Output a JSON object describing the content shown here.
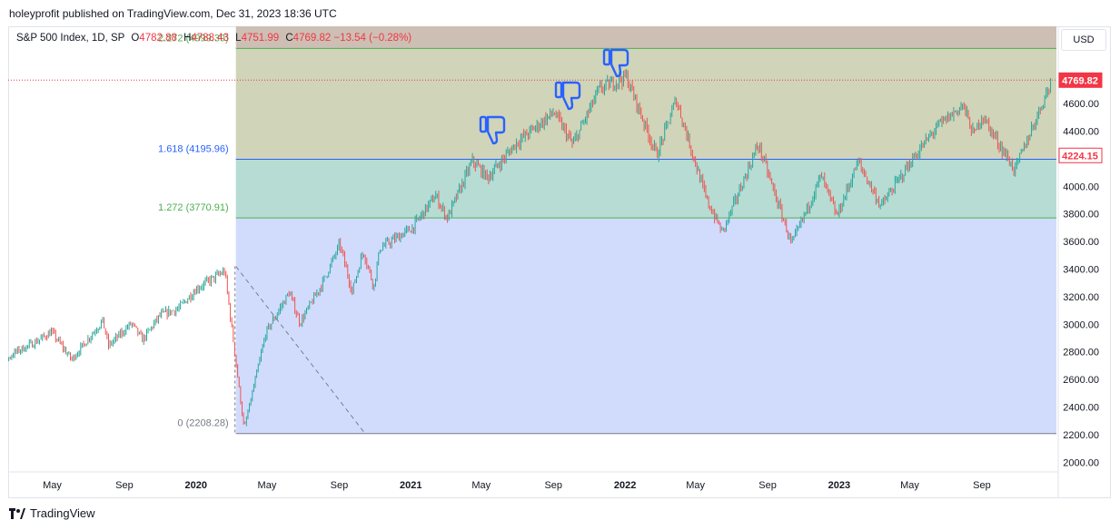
{
  "header": {
    "publisher_line": "holeyprofit published on TradingView.com, Dec 31, 2023 18:36 UTC"
  },
  "legend": {
    "symbol": "S&P 500 Index, 1D, SP",
    "o_label": "O",
    "o_value": "4782.88",
    "h_label": "H",
    "h_value": "4788.43",
    "l_label": "L",
    "l_value": "4751.99",
    "c_label": "C",
    "c_value": "4769.82",
    "change": "−13.54 (−0.28%)"
  },
  "currency_button": "USD",
  "footer": {
    "brand": "TradingView"
  },
  "colors": {
    "up": "#26a69a",
    "down": "#ef5350",
    "fib_line": "#2962ff"
  },
  "chart_data": {
    "type": "candlestick",
    "title": "",
    "x_ticks": [
      "May",
      "Sep",
      "2020",
      "May",
      "Sep",
      "2021",
      "May",
      "Sep",
      "2022",
      "May",
      "Sep",
      "2023",
      "May",
      "Sep"
    ],
    "x_ticks_bold": [
      false,
      false,
      true,
      false,
      false,
      true,
      false,
      false,
      true,
      false,
      false,
      true,
      false,
      false
    ],
    "y_ticks": [
      2000,
      2200,
      2400,
      2600,
      2800,
      3000,
      3200,
      3400,
      3600,
      3800,
      4000,
      4200,
      4400,
      4600,
      4800
    ],
    "ylim": [
      1930,
      5160
    ],
    "last_price": {
      "value": 4769.82,
      "label": "4769.82"
    },
    "second_price": {
      "value": 4224.15,
      "label": "4224.15"
    },
    "fib_levels": [
      {
        "ratio": 0,
        "value": 2208.28,
        "label": "0 (2208.28)",
        "color": "#787b86"
      },
      {
        "ratio": 1.272,
        "value": 3770.91,
        "label": "1.272 (3770.91)",
        "color": "#4caf50"
      },
      {
        "ratio": 1.618,
        "value": 4195.96,
        "label": "1.618 (4195.96)",
        "color": "#2962ff"
      },
      {
        "ratio": 2.272,
        "value": 4999.39,
        "label": "2.272 (4999.39)",
        "color": "#4caf50"
      }
    ],
    "price_path": [
      [
        "2019-01-02",
        2510
      ],
      [
        "2019-02-01",
        2706
      ],
      [
        "2019-03-01",
        2803
      ],
      [
        "2019-04-01",
        2867
      ],
      [
        "2019-04-30",
        2945
      ],
      [
        "2019-06-03",
        2744
      ],
      [
        "2019-07-26",
        3025
      ],
      [
        "2019-08-05",
        2844
      ],
      [
        "2019-09-13",
        3007
      ],
      [
        "2019-10-02",
        2887
      ],
      [
        "2019-11-01",
        3066
      ],
      [
        "2019-12-02",
        3113
      ],
      [
        "2020-01-02",
        3258
      ],
      [
        "2020-02-19",
        3386
      ],
      [
        "2020-03-23",
        2237
      ],
      [
        "2020-04-29",
        2939
      ],
      [
        "2020-06-08",
        3232
      ],
      [
        "2020-06-26",
        3009
      ],
      [
        "2020-08-03",
        3294
      ],
      [
        "2020-09-02",
        3580
      ],
      [
        "2020-09-23",
        3237
      ],
      [
        "2020-10-12",
        3534
      ],
      [
        "2020-10-30",
        3270
      ],
      [
        "2020-11-09",
        3550
      ],
      [
        "2021-01-04",
        3700
      ],
      [
        "2021-02-12",
        3934
      ],
      [
        "2021-03-04",
        3768
      ],
      [
        "2021-04-16",
        4185
      ],
      [
        "2021-05-12",
        4063
      ],
      [
        "2021-07-01",
        4320
      ],
      [
        "2021-09-02",
        4537
      ],
      [
        "2021-10-04",
        4300
      ],
      [
        "2021-11-18",
        4704
      ],
      [
        "2022-01-03",
        4796
      ],
      [
        "2022-02-24",
        4225
      ],
      [
        "2022-03-29",
        4631
      ],
      [
        "2022-05-20",
        3901
      ],
      [
        "2022-06-16",
        3666
      ],
      [
        "2022-08-16",
        4305
      ],
      [
        "2022-10-12",
        3577
      ],
      [
        "2022-12-01",
        4076
      ],
      [
        "2022-12-28",
        3783
      ],
      [
        "2023-02-02",
        4179
      ],
      [
        "2023-03-13",
        3855
      ],
      [
        "2023-05-01",
        4167
      ],
      [
        "2023-06-15",
        4425
      ],
      [
        "2023-07-31",
        4589
      ],
      [
        "2023-08-18",
        4370
      ],
      [
        "2023-09-01",
        4515
      ],
      [
        "2023-10-27",
        4117
      ],
      [
        "2023-12-29",
        4769.82
      ]
    ]
  }
}
